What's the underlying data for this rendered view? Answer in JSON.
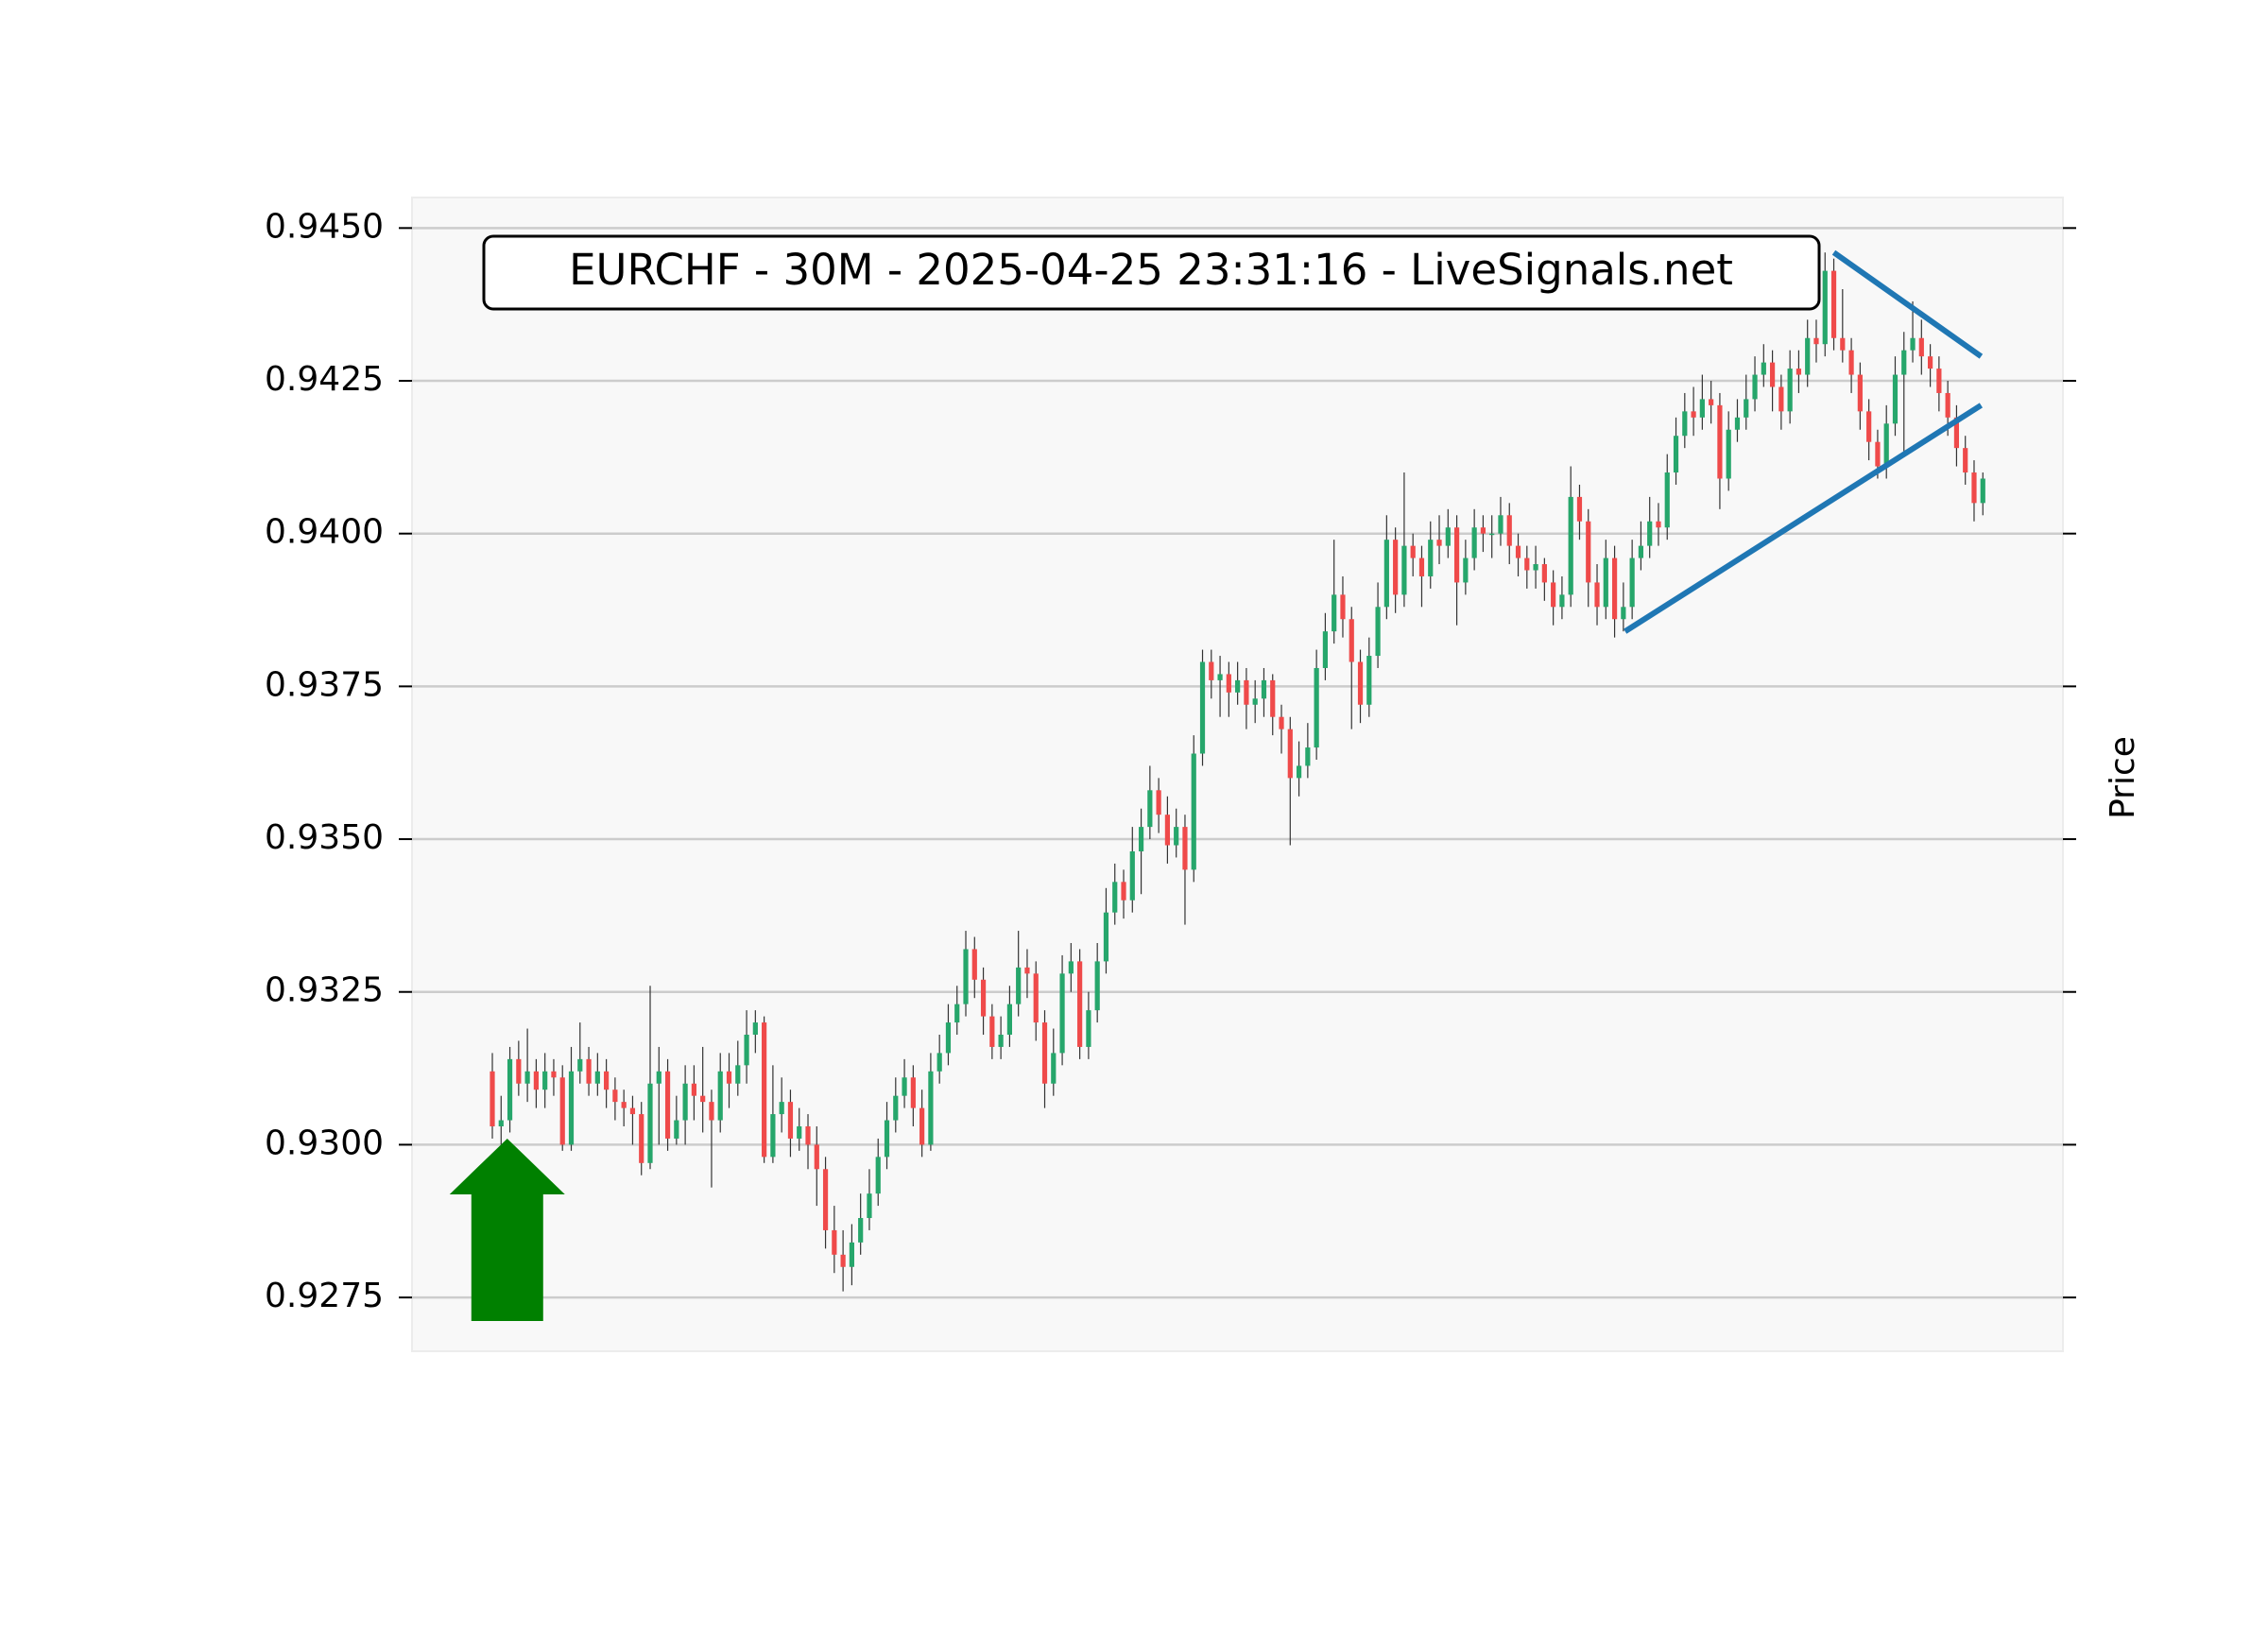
{
  "chart_data": {
    "type": "candlestick",
    "title": "EURCHF - 30M - 2025-04-25 23:31:16 - LiveSignals.net",
    "y_label": "Price",
    "ylim": [
      0.92662,
      0.9455
    ],
    "yticks": [
      0.9275,
      {
        "value": 0.93,
        "label": "0.9300"
      },
      0.9325,
      {
        "value": 0.935,
        "label": "0.9350"
      },
      0.9375,
      {
        "value": 0.94,
        "label": "0.9400"
      },
      0.9425,
      {
        "value": 0.945,
        "label": "0.9450"
      }
    ],
    "grid": true,
    "up_color": "#26a66b",
    "down_color": "#ef4a4a",
    "ohlc": [
      [
        0.9312,
        0.9315,
        0.9301,
        0.9303
      ],
      [
        0.9303,
        0.9308,
        0.93,
        0.9304
      ],
      [
        0.9304,
        0.9316,
        0.9302,
        0.9314
      ],
      [
        0.9314,
        0.9317,
        0.9308,
        0.931
      ],
      [
        0.931,
        0.9319,
        0.9307,
        0.9312
      ],
      [
        0.9312,
        0.9314,
        0.9306,
        0.9309
      ],
      [
        0.9309,
        0.9315,
        0.9306,
        0.9312
      ],
      [
        0.9312,
        0.9314,
        0.9308,
        0.9311
      ],
      [
        0.9311,
        0.9313,
        0.9299,
        0.93
      ],
      [
        0.93,
        0.9316,
        0.9299,
        0.9312
      ],
      [
        0.9312,
        0.932,
        0.931,
        0.9314
      ],
      [
        0.9314,
        0.9316,
        0.9308,
        0.931
      ],
      [
        0.931,
        0.9315,
        0.9308,
        0.9312
      ],
      [
        0.9312,
        0.9314,
        0.9306,
        0.9309
      ],
      [
        0.9309,
        0.9311,
        0.9304,
        0.9307
      ],
      [
        0.9307,
        0.9309,
        0.9303,
        0.9306
      ],
      [
        0.9306,
        0.9308,
        0.93,
        0.9305
      ],
      [
        0.9305,
        0.9307,
        0.9295,
        0.9297
      ],
      [
        0.9297,
        0.9326,
        0.9296,
        0.931
      ],
      [
        0.931,
        0.9316,
        0.93,
        0.9312
      ],
      [
        0.9312,
        0.9314,
        0.9299,
        0.9301
      ],
      [
        0.9301,
        0.9308,
        0.93,
        0.9304
      ],
      [
        0.9304,
        0.9313,
        0.93,
        0.931
      ],
      [
        0.931,
        0.9313,
        0.9304,
        0.9308
      ],
      [
        0.9308,
        0.9316,
        0.9302,
        0.9307
      ],
      [
        0.9307,
        0.9309,
        0.9293,
        0.9304
      ],
      [
        0.9304,
        0.9315,
        0.9302,
        0.9312
      ],
      [
        0.9312,
        0.9315,
        0.9306,
        0.931
      ],
      [
        0.931,
        0.9317,
        0.9308,
        0.9313
      ],
      [
        0.9313,
        0.9322,
        0.931,
        0.9318
      ],
      [
        0.9318,
        0.9322,
        0.9315,
        0.932
      ],
      [
        0.932,
        0.9321,
        0.9297,
        0.9298
      ],
      [
        0.9298,
        0.9313,
        0.9297,
        0.9305
      ],
      [
        0.9305,
        0.9311,
        0.9302,
        0.9307
      ],
      [
        0.9307,
        0.9309,
        0.9298,
        0.9301
      ],
      [
        0.9301,
        0.9306,
        0.9299,
        0.9303
      ],
      [
        0.9303,
        0.9305,
        0.9296,
        0.93
      ],
      [
        0.93,
        0.9303,
        0.929,
        0.9296
      ],
      [
        0.9296,
        0.9298,
        0.9283,
        0.9286
      ],
      [
        0.9286,
        0.929,
        0.9279,
        0.9282
      ],
      [
        0.9282,
        0.9286,
        0.9276,
        0.928
      ],
      [
        0.928,
        0.9287,
        0.9277,
        0.9284
      ],
      [
        0.9284,
        0.9292,
        0.9282,
        0.9288
      ],
      [
        0.9288,
        0.9296,
        0.9286,
        0.9292
      ],
      [
        0.9292,
        0.9301,
        0.929,
        0.9298
      ],
      [
        0.9298,
        0.9307,
        0.9296,
        0.9304
      ],
      [
        0.9304,
        0.9311,
        0.9302,
        0.9308
      ],
      [
        0.9308,
        0.9314,
        0.9306,
        0.9311
      ],
      [
        0.9311,
        0.9313,
        0.9303,
        0.9306
      ],
      [
        0.9306,
        0.9309,
        0.9298,
        0.93
      ],
      [
        0.93,
        0.9315,
        0.9299,
        0.9312
      ],
      [
        0.9312,
        0.9318,
        0.931,
        0.9315
      ],
      [
        0.9315,
        0.9323,
        0.9313,
        0.932
      ],
      [
        0.932,
        0.9326,
        0.9318,
        0.9323
      ],
      [
        0.9323,
        0.9335,
        0.9321,
        0.9332
      ],
      [
        0.9332,
        0.9334,
        0.9324,
        0.9327
      ],
      [
        0.9327,
        0.9329,
        0.9318,
        0.9321
      ],
      [
        0.9321,
        0.9323,
        0.9314,
        0.9316
      ],
      [
        0.9316,
        0.9321,
        0.9314,
        0.9318
      ],
      [
        0.9318,
        0.9326,
        0.9316,
        0.9323
      ],
      [
        0.9323,
        0.9335,
        0.9321,
        0.9329
      ],
      [
        0.9329,
        0.9332,
        0.9324,
        0.9328
      ],
      [
        0.9328,
        0.933,
        0.9317,
        0.932
      ],
      [
        0.932,
        0.9322,
        0.9306,
        0.931
      ],
      [
        0.931,
        0.9319,
        0.9308,
        0.9315
      ],
      [
        0.9315,
        0.9331,
        0.9313,
        0.9328
      ],
      [
        0.9328,
        0.9333,
        0.9325,
        0.933
      ],
      [
        0.933,
        0.9332,
        0.9314,
        0.9316
      ],
      [
        0.9316,
        0.9325,
        0.9314,
        0.9322
      ],
      [
        0.9322,
        0.9333,
        0.932,
        0.933
      ],
      [
        0.933,
        0.9342,
        0.9328,
        0.9338
      ],
      [
        0.9338,
        0.9346,
        0.9336,
        0.9343
      ],
      [
        0.9343,
        0.9345,
        0.9337,
        0.934
      ],
      [
        0.934,
        0.9352,
        0.9338,
        0.9348
      ],
      [
        0.9348,
        0.9355,
        0.9341,
        0.9352
      ],
      [
        0.9352,
        0.9362,
        0.935,
        0.9358
      ],
      [
        0.9358,
        0.936,
        0.9351,
        0.9354
      ],
      [
        0.9354,
        0.9357,
        0.9346,
        0.9349
      ],
      [
        0.9349,
        0.9355,
        0.9347,
        0.9352
      ],
      [
        0.9352,
        0.9354,
        0.9336,
        0.9345
      ],
      [
        0.9345,
        0.9367,
        0.9343,
        0.9364
      ],
      [
        0.9364,
        0.9381,
        0.9362,
        0.9379
      ],
      [
        0.9379,
        0.9381,
        0.9373,
        0.9376
      ],
      [
        0.9376,
        0.938,
        0.937,
        0.9377
      ],
      [
        0.9377,
        0.9379,
        0.937,
        0.9374
      ],
      [
        0.9374,
        0.9379,
        0.9372,
        0.9376
      ],
      [
        0.9376,
        0.9378,
        0.9368,
        0.9372
      ],
      [
        0.9372,
        0.9376,
        0.9369,
        0.9373
      ],
      [
        0.9373,
        0.9378,
        0.937,
        0.9376
      ],
      [
        0.9376,
        0.9377,
        0.9367,
        0.937
      ],
      [
        0.937,
        0.9372,
        0.9364,
        0.9368
      ],
      [
        0.9368,
        0.937,
        0.9349,
        0.936
      ],
      [
        0.936,
        0.9366,
        0.9357,
        0.9362
      ],
      [
        0.9362,
        0.9369,
        0.936,
        0.9365
      ],
      [
        0.9365,
        0.9381,
        0.9363,
        0.9378
      ],
      [
        0.9378,
        0.9387,
        0.9376,
        0.9384
      ],
      [
        0.9384,
        0.9399,
        0.9382,
        0.939
      ],
      [
        0.939,
        0.9393,
        0.9383,
        0.9386
      ],
      [
        0.9386,
        0.9388,
        0.9368,
        0.9379
      ],
      [
        0.9379,
        0.9381,
        0.9369,
        0.9372
      ],
      [
        0.9372,
        0.9383,
        0.937,
        0.938
      ],
      [
        0.938,
        0.9392,
        0.9378,
        0.9388
      ],
      [
        0.9388,
        0.9403,
        0.9386,
        0.9399
      ],
      [
        0.9399,
        0.9401,
        0.9387,
        0.939
      ],
      [
        0.939,
        0.941,
        0.9388,
        0.9398
      ],
      [
        0.9398,
        0.94,
        0.9393,
        0.9396
      ],
      [
        0.9396,
        0.9398,
        0.9388,
        0.9393
      ],
      [
        0.9393,
        0.9402,
        0.9391,
        0.9399
      ],
      [
        0.9399,
        0.9403,
        0.9395,
        0.9398
      ],
      [
        0.9398,
        0.9404,
        0.9396,
        0.9401
      ],
      [
        0.9401,
        0.9403,
        0.9385,
        0.9392
      ],
      [
        0.9392,
        0.9399,
        0.939,
        0.9396
      ],
      [
        0.9396,
        0.9404,
        0.9394,
        0.9401
      ],
      [
        0.9401,
        0.9403,
        0.9397,
        0.94
      ],
      [
        0.94,
        0.9403,
        0.9396,
        0.94
      ],
      [
        0.94,
        0.9406,
        0.9398,
        0.9403
      ],
      [
        0.9403,
        0.9405,
        0.9395,
        0.9398
      ],
      [
        0.9398,
        0.94,
        0.9393,
        0.9396
      ],
      [
        0.9396,
        0.9398,
        0.9391,
        0.9394
      ],
      [
        0.9394,
        0.9398,
        0.9391,
        0.9395
      ],
      [
        0.9395,
        0.9396,
        0.9389,
        0.9392
      ],
      [
        0.9392,
        0.9394,
        0.9385,
        0.9388
      ],
      [
        0.9388,
        0.9393,
        0.9386,
        0.939
      ],
      [
        0.939,
        0.9411,
        0.9388,
        0.9406
      ],
      [
        0.9406,
        0.9408,
        0.9399,
        0.9402
      ],
      [
        0.9402,
        0.9404,
        0.9388,
        0.9392
      ],
      [
        0.9392,
        0.9395,
        0.9385,
        0.9388
      ],
      [
        0.9388,
        0.9399,
        0.9386,
        0.9396
      ],
      [
        0.9396,
        0.9398,
        0.9383,
        0.9386
      ],
      [
        0.9386,
        0.9392,
        0.9384,
        0.9388
      ],
      [
        0.9388,
        0.9399,
        0.9386,
        0.9396
      ],
      [
        0.9396,
        0.9402,
        0.9394,
        0.9398
      ],
      [
        0.9398,
        0.9406,
        0.9396,
        0.9402
      ],
      [
        0.9402,
        0.9405,
        0.9398,
        0.9401
      ],
      [
        0.9401,
        0.9413,
        0.9399,
        0.941
      ],
      [
        0.941,
        0.9419,
        0.9408,
        0.9416
      ],
      [
        0.9416,
        0.9423,
        0.9414,
        0.942
      ],
      [
        0.942,
        0.9424,
        0.9416,
        0.9419
      ],
      [
        0.9419,
        0.9426,
        0.9417,
        0.9422
      ],
      [
        0.9422,
        0.9425,
        0.9418,
        0.9421
      ],
      [
        0.9421,
        0.9423,
        0.9404,
        0.9409
      ],
      [
        0.9409,
        0.942,
        0.9407,
        0.9417
      ],
      [
        0.9417,
        0.9422,
        0.9415,
        0.9419
      ],
      [
        0.9419,
        0.9426,
        0.9417,
        0.9422
      ],
      [
        0.9422,
        0.9429,
        0.942,
        0.9426
      ],
      [
        0.9426,
        0.9431,
        0.9424,
        0.9428
      ],
      [
        0.9428,
        0.943,
        0.942,
        0.9424
      ],
      [
        0.9424,
        0.9426,
        0.9417,
        0.942
      ],
      [
        0.942,
        0.943,
        0.9418,
        0.9427
      ],
      [
        0.9427,
        0.943,
        0.9423,
        0.9426
      ],
      [
        0.9426,
        0.9435,
        0.9424,
        0.9432
      ],
      [
        0.9432,
        0.9435,
        0.9428,
        0.9431
      ],
      [
        0.9431,
        0.9446,
        0.9429,
        0.9443
      ],
      [
        0.9443,
        0.9445,
        0.943,
        0.9432
      ],
      [
        0.9432,
        0.944,
        0.9428,
        0.943
      ],
      [
        0.943,
        0.9432,
        0.9423,
        0.9426
      ],
      [
        0.9426,
        0.9428,
        0.9417,
        0.942
      ],
      [
        0.942,
        0.9422,
        0.9412,
        0.9415
      ],
      [
        0.9415,
        0.9417,
        0.9409,
        0.9411
      ],
      [
        0.9411,
        0.9421,
        0.9409,
        0.9418
      ],
      [
        0.9418,
        0.9429,
        0.9416,
        0.9426
      ],
      [
        0.9426,
        0.9433,
        0.9413,
        0.943
      ],
      [
        0.943,
        0.9438,
        0.9428,
        0.9432
      ],
      [
        0.9432,
        0.9435,
        0.9426,
        0.9429
      ],
      [
        0.9429,
        0.9431,
        0.9424,
        0.9427
      ],
      [
        0.9427,
        0.9429,
        0.942,
        0.9423
      ],
      [
        0.9423,
        0.9425,
        0.9416,
        0.9419
      ],
      [
        0.9419,
        0.9421,
        0.9411,
        0.9414
      ],
      [
        0.9414,
        0.9416,
        0.9408,
        0.941
      ],
      [
        0.941,
        0.9412,
        0.9402,
        0.9405
      ],
      [
        0.9405,
        0.941,
        0.9403,
        0.9409
      ]
    ],
    "trendlines": [
      {
        "x": [
          153,
          169.8
        ],
        "y": [
          0.9446,
          0.9429
        ],
        "color": "#1f77b4"
      },
      {
        "x": [
          129.2,
          169.8
        ],
        "y": [
          0.9384,
          0.9421
        ],
        "color": "#1f77b4"
      }
    ],
    "arrow": {
      "x": 1.7,
      "y": 0.9301,
      "color": "#008000"
    }
  }
}
